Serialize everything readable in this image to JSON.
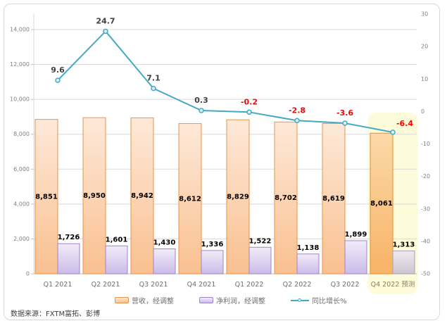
{
  "chart_data": {
    "type": "bar+line combo",
    "title": "",
    "categories": [
      "Q1 2021",
      "Q2 2021",
      "Q3 2021",
      "Q4 2021",
      "Q1 2022",
      "Q2 2022",
      "Q3 2022",
      "Q4 2022 预测"
    ],
    "forecast_category_index": 7,
    "series": [
      {
        "name": "营收，经调整",
        "type": "bar",
        "axis": "left",
        "values": [
          8851,
          8950,
          8942,
          8612,
          8829,
          8702,
          8619,
          8061
        ],
        "labels": [
          "8,851",
          "8,950",
          "8,942",
          "8,612",
          "8,829",
          "8,702",
          "8,619",
          "8,061"
        ]
      },
      {
        "name": "净利润，经调整",
        "type": "bar",
        "axis": "left",
        "values": [
          1726,
          1601,
          1430,
          1336,
          1522,
          1138,
          1899,
          1313
        ],
        "labels": [
          "1,726",
          "1,601",
          "1,430",
          "1,336",
          "1,522",
          "1,138",
          "1,899",
          "1,313"
        ]
      },
      {
        "name": "同比增长%",
        "type": "line",
        "axis": "right",
        "values": [
          9.6,
          24.7,
          7.1,
          0.3,
          -0.2,
          -2.8,
          -3.6,
          -6.4
        ],
        "labels": [
          "9.6",
          "24.7",
          "7.1",
          "0.3",
          "-0.2",
          "-2.8",
          "-3.6",
          "-6.4"
        ]
      }
    ],
    "left_axis": {
      "min": 0,
      "max": 14000,
      "step": 2000,
      "ticks": [
        "0",
        "2,000",
        "4,000",
        "6,000",
        "8,000",
        "10,000",
        "12,000",
        "14,000"
      ]
    },
    "right_axis": {
      "min": -50,
      "max": 30,
      "step": 10,
      "ticks": [
        "30",
        "20",
        "10",
        "0",
        "-10",
        "-20",
        "-30",
        "-40",
        "-50"
      ]
    },
    "grid": true,
    "legend_position": "bottom",
    "colors": {
      "orange_fill_top": "#fde9d9",
      "orange_fill_bottom": "#fac090",
      "orange_border": "#e9934a",
      "orange_hl_fill_top": "#fbd9a8",
      "orange_hl_fill_bottom": "#f8b366",
      "orange_hl_border": "#e08c33",
      "purple_fill_top": "#f1ecf9",
      "purple_fill_bottom": "#ccbbe8",
      "purple_border": "#9c86c8",
      "purple_hl_fill_top": "#efeaef",
      "purple_hl_fill_bottom": "#cfc5d2",
      "purple_hl_border": "#ab9fb0",
      "line": "#45a9c6",
      "marker_fill": "#dff0f7",
      "label_positive": "#404040",
      "label_negative": "#ff0000",
      "bar_label": "#000000",
      "grid": "#d9d9d9",
      "axis_line": "#bfbfbf",
      "axis_text": "#808080",
      "category_text": "#6e6e6e",
      "forecast_text": "#8a8160",
      "highlight_fill": "#fefbdb"
    }
  },
  "footer": {
    "source_text": "数据来源：FXTM富拓、彭博"
  }
}
